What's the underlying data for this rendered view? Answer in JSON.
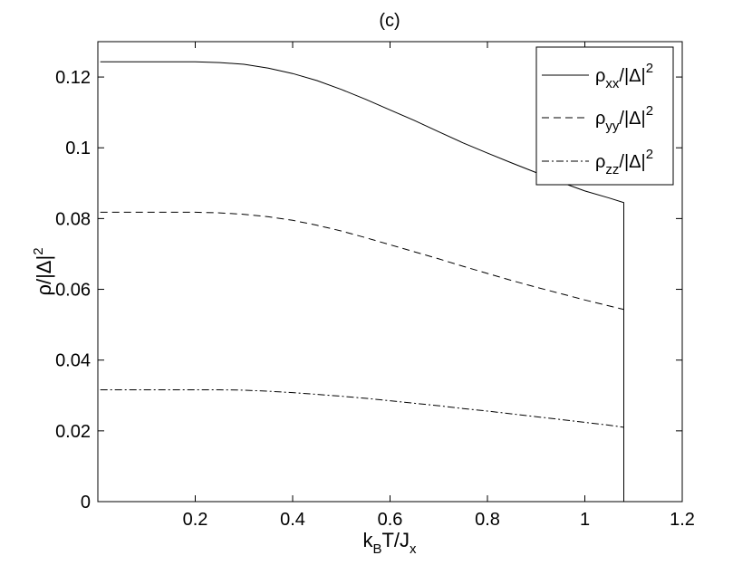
{
  "chart_data": {
    "type": "line",
    "title": "(c)",
    "xlabel": {
      "main": "k",
      "sub1": "B",
      "mid": "T/J",
      "sub2": "x"
    },
    "ylabel": {
      "main": "ρ/|Δ|",
      "sup": "2"
    },
    "xlim": [
      0,
      1.2
    ],
    "ylim": [
      0,
      0.13
    ],
    "xticks": [
      "0.2",
      "0.4",
      "0.6",
      "0.8",
      "1",
      "1.2"
    ],
    "yticks": [
      "0",
      "0.02",
      "0.04",
      "0.06",
      "0.08",
      "0.1",
      "0.12"
    ],
    "grid": false,
    "legend_position": "top-right",
    "series": [
      {
        "name": "ρxx/|Δ|2",
        "legend": {
          "main": "ρ",
          "sub": "xx",
          "rest": "/|Δ|",
          "sup": "2"
        },
        "style": "solid",
        "x": [
          0.005,
          0.1,
          0.2,
          0.25,
          0.3,
          0.35,
          0.4,
          0.45,
          0.5,
          0.55,
          0.6,
          0.65,
          0.7,
          0.75,
          0.8,
          0.85,
          0.9,
          0.95,
          1.0,
          1.05,
          1.08,
          1.08
        ],
        "y": [
          0.1243,
          0.1243,
          0.1243,
          0.1241,
          0.1236,
          0.1225,
          0.121,
          0.119,
          0.1165,
          0.1137,
          0.1107,
          0.1077,
          0.1045,
          0.1014,
          0.0985,
          0.0957,
          0.093,
          0.0903,
          0.0878,
          0.0858,
          0.0845,
          0.0
        ]
      },
      {
        "name": "ρyy/|Δ|2",
        "legend": {
          "main": "ρ",
          "sub": "yy",
          "rest": "/|Δ|",
          "sup": "2"
        },
        "style": "dashed",
        "x": [
          0.005,
          0.1,
          0.2,
          0.25,
          0.3,
          0.35,
          0.4,
          0.45,
          0.5,
          0.55,
          0.6,
          0.65,
          0.7,
          0.75,
          0.8,
          0.85,
          0.9,
          0.95,
          1.0,
          1.05,
          1.08,
          1.08
        ],
        "y": [
          0.0818,
          0.0818,
          0.0818,
          0.0816,
          0.0812,
          0.0805,
          0.0795,
          0.0781,
          0.0765,
          0.0746,
          0.0726,
          0.0706,
          0.0686,
          0.0665,
          0.0645,
          0.0625,
          0.0606,
          0.0588,
          0.057,
          0.0553,
          0.0543,
          0.0
        ]
      },
      {
        "name": "ρzz/|Δ|2",
        "legend": {
          "main": "ρ",
          "sub": "zz",
          "rest": "/|Δ|",
          "sup": "2"
        },
        "style": "dashdot",
        "x": [
          0.005,
          0.1,
          0.2,
          0.25,
          0.3,
          0.35,
          0.4,
          0.45,
          0.5,
          0.55,
          0.6,
          0.65,
          0.7,
          0.75,
          0.8,
          0.85,
          0.9,
          0.95,
          1.0,
          1.05,
          1.08,
          1.08
        ],
        "y": [
          0.0316,
          0.0316,
          0.0316,
          0.0316,
          0.0315,
          0.0312,
          0.0308,
          0.0303,
          0.0298,
          0.0292,
          0.0285,
          0.0278,
          0.0271,
          0.0263,
          0.0256,
          0.0248,
          0.024,
          0.0232,
          0.0224,
          0.0216,
          0.021,
          0.0
        ]
      }
    ]
  }
}
